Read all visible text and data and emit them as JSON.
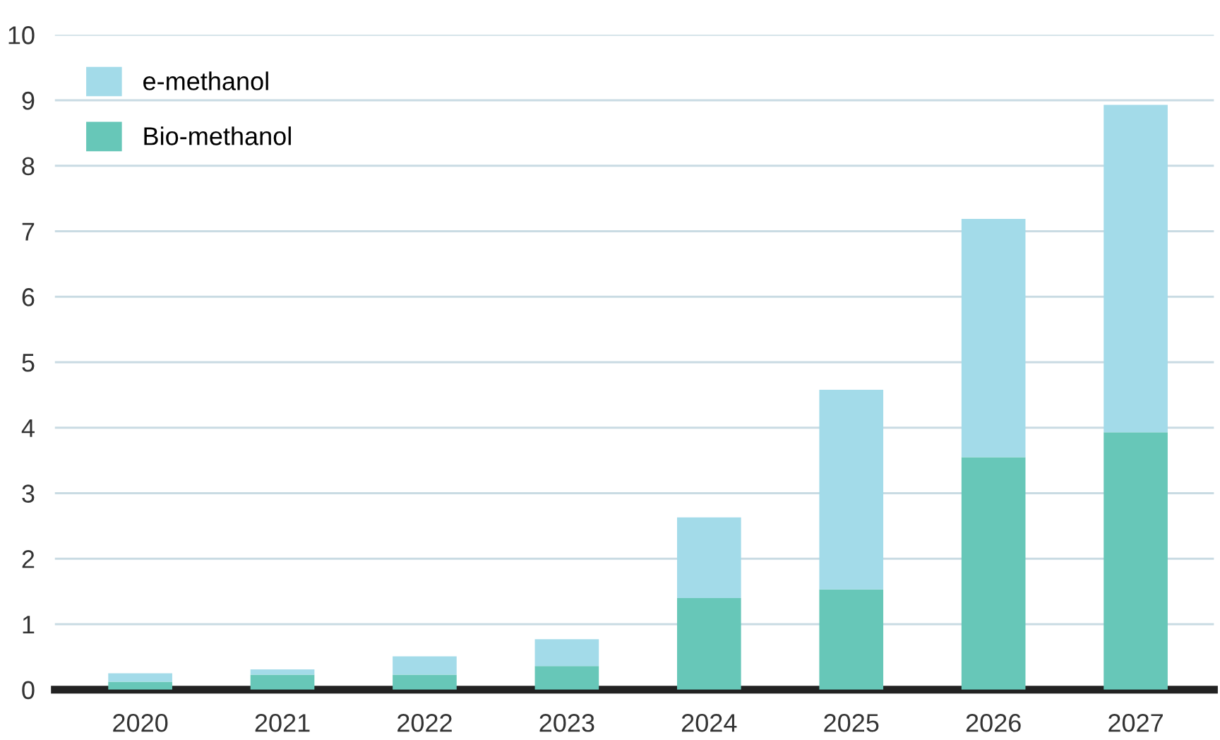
{
  "chart_data": {
    "type": "bar",
    "stacked": true,
    "categories": [
      "2020",
      "2021",
      "2022",
      "2023",
      "2024",
      "2025",
      "2026",
      "2027"
    ],
    "series": [
      {
        "name": "Bio-methanol",
        "color": "#67c7b8",
        "values": [
          0.12,
          0.23,
          0.23,
          0.36,
          1.4,
          1.53,
          3.55,
          3.93
        ]
      },
      {
        "name": "e-methanol",
        "color": "#a3dbe9",
        "values": [
          0.13,
          0.08,
          0.28,
          0.41,
          1.23,
          3.05,
          3.64,
          5.0
        ]
      }
    ],
    "ylim": [
      0,
      10
    ],
    "yticks": [
      0,
      1,
      2,
      3,
      4,
      5,
      6,
      7,
      8,
      9,
      10
    ],
    "grid": "y",
    "legend": "top left"
  }
}
